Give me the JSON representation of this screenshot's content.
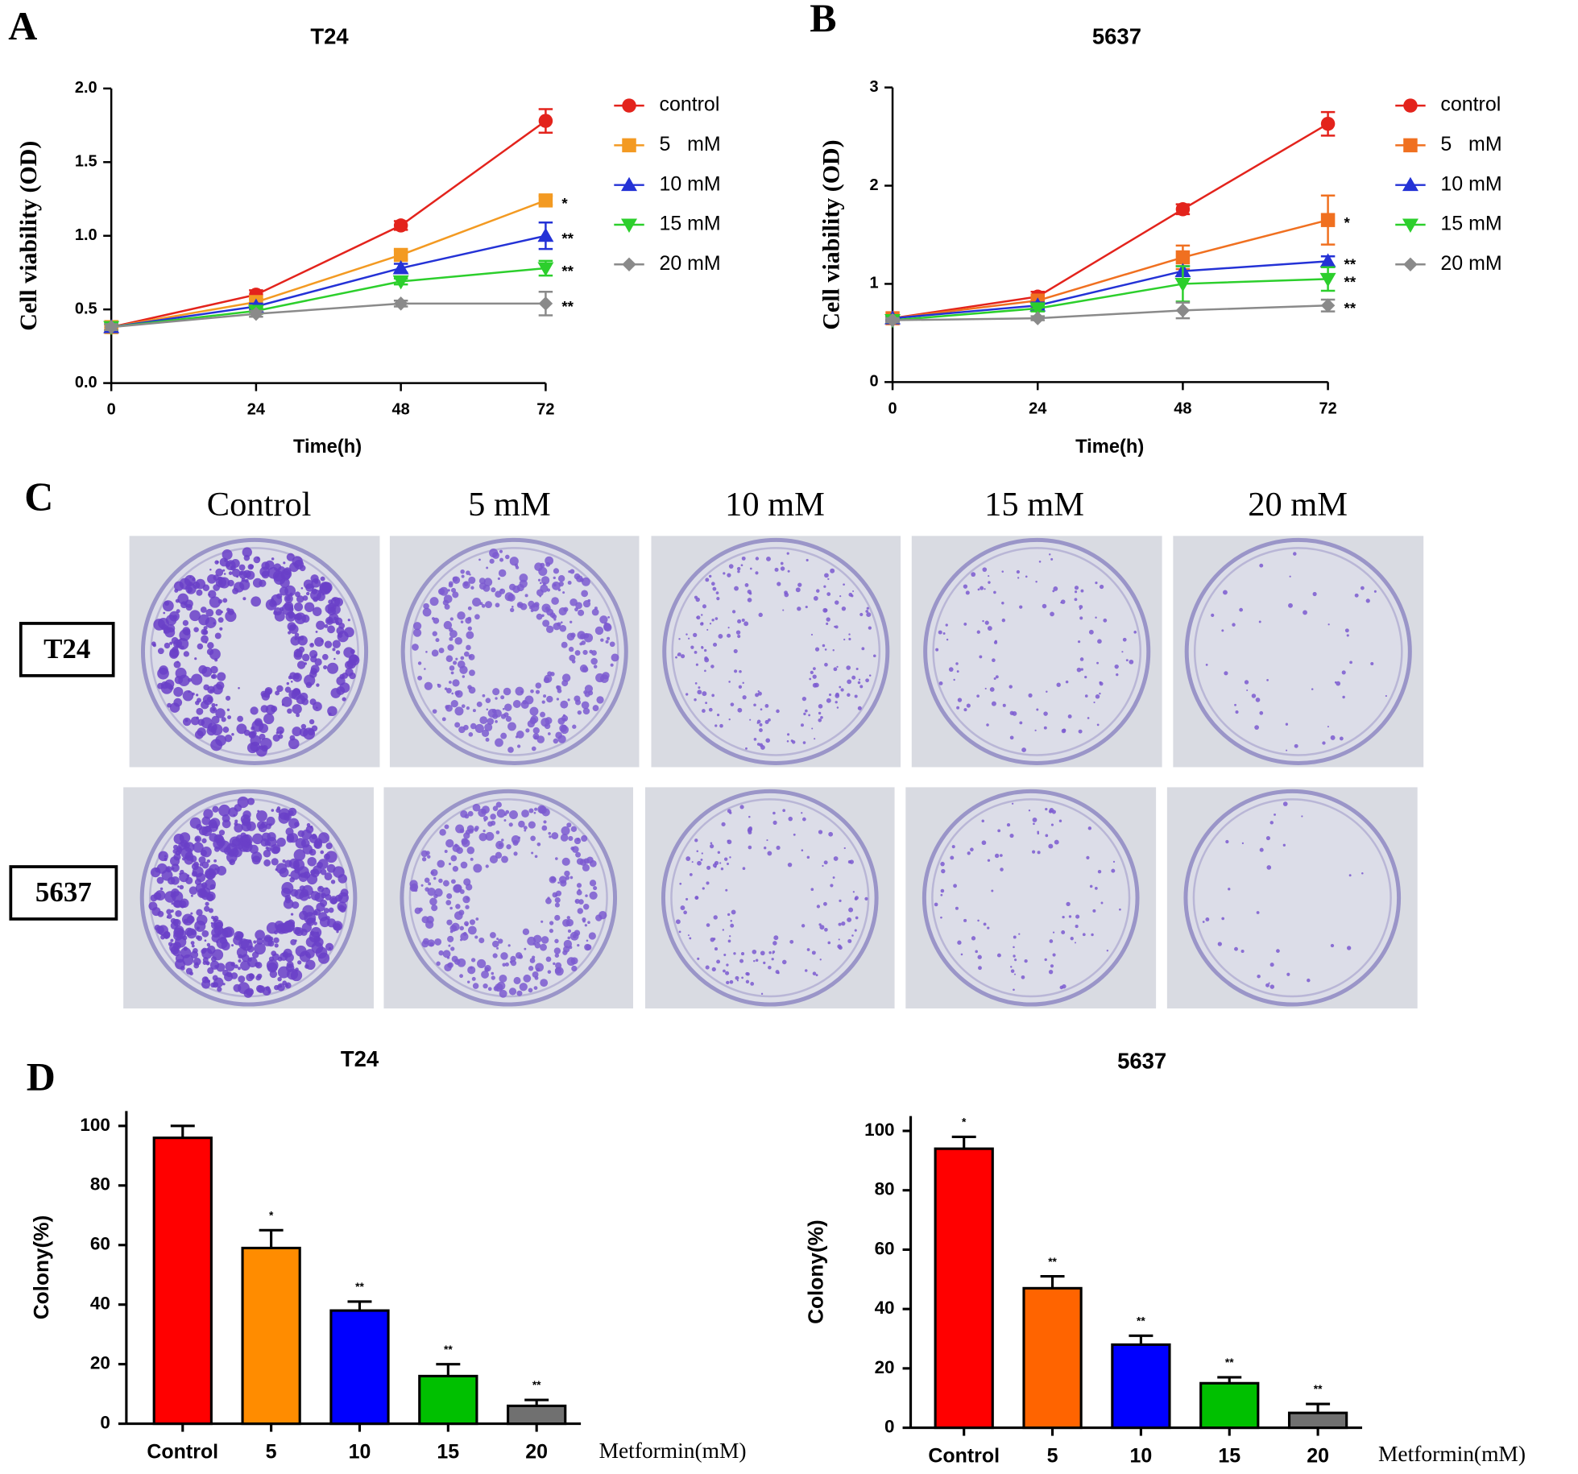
{
  "chart_data": [
    {
      "type": "line",
      "panel_label": "A",
      "title": "T24",
      "xlabel": "Time(h)",
      "ylabel": "Cell viability (OD)",
      "x": [
        0,
        24,
        48,
        72
      ],
      "xlim": [
        0,
        72
      ],
      "xticks": [
        0,
        24,
        48,
        72
      ],
      "ylim": [
        0,
        2
      ],
      "yticks": [
        {
          "value": 0,
          "label": "0.0"
        },
        0.5,
        {
          "value": 1,
          "label": "1.0"
        },
        1.5,
        {
          "value": 2,
          "label": "2.0"
        }
      ],
      "series": [
        {
          "name": "control",
          "color": "#e3231c",
          "marker": "circle",
          "values": [
            0.38,
            0.6,
            1.07,
            1.78
          ],
          "errors": [
            0.02,
            0.03,
            0.03,
            0.08
          ]
        },
        {
          "name": "5   mM",
          "color": "#f39a22",
          "marker": "square",
          "values": [
            0.38,
            0.55,
            0.87,
            1.24
          ],
          "errors": [
            0.02,
            0.02,
            0.03,
            0.03
          ],
          "annotation": "*"
        },
        {
          "name": "10 mM",
          "color": "#2432d6",
          "marker": "triangle-up",
          "values": [
            0.38,
            0.52,
            0.78,
            1.0
          ],
          "errors": [
            0.02,
            0.02,
            0.03,
            0.09
          ],
          "annotation": "**"
        },
        {
          "name": "15 mM",
          "color": "#2ccf2c",
          "marker": "triangle-down",
          "values": [
            0.38,
            0.49,
            0.69,
            0.78
          ],
          "errors": [
            0.02,
            0.02,
            0.02,
            0.05
          ],
          "annotation": "**"
        },
        {
          "name": "20 mM",
          "color": "#8a8a8a",
          "marker": "diamond",
          "values": [
            0.38,
            0.47,
            0.54,
            0.54
          ],
          "errors": [
            0.02,
            0.02,
            0.02,
            0.08
          ],
          "annotation": "**"
        }
      ]
    },
    {
      "type": "line",
      "panel_label": "B",
      "title": "5637",
      "xlabel": "Time(h)",
      "ylabel": "Cell viability (OD)",
      "x": [
        0,
        24,
        48,
        72
      ],
      "xlim": [
        0,
        72
      ],
      "xticks": [
        0,
        24,
        48,
        72
      ],
      "ylim": [
        0,
        3
      ],
      "yticks": [
        0,
        1,
        2,
        3
      ],
      "series": [
        {
          "name": "control",
          "color": "#e3231c",
          "marker": "circle",
          "values": [
            0.65,
            0.87,
            1.76,
            2.63
          ],
          "errors": [
            0.03,
            0.05,
            0.05,
            0.12
          ]
        },
        {
          "name": "5   mM",
          "color": "#f07020",
          "marker": "square",
          "values": [
            0.65,
            0.83,
            1.27,
            1.65
          ],
          "errors": [
            0.02,
            0.04,
            0.12,
            0.25
          ],
          "annotation": "*"
        },
        {
          "name": "10 mM",
          "color": "#2432d6",
          "marker": "triangle-up",
          "values": [
            0.65,
            0.78,
            1.13,
            1.23
          ],
          "errors": [
            0.02,
            0.03,
            0.05,
            0.05
          ],
          "annotation": "**"
        },
        {
          "name": "15 mM",
          "color": "#2ccf2c",
          "marker": "triangle-down",
          "values": [
            0.63,
            0.75,
            1.0,
            1.05
          ],
          "errors": [
            0.02,
            0.03,
            0.18,
            0.12
          ],
          "annotation": "**"
        },
        {
          "name": "20 mM",
          "color": "#8a8a8a",
          "marker": "diamond",
          "values": [
            0.63,
            0.65,
            0.73,
            0.78
          ],
          "errors": [
            0.02,
            0.02,
            0.08,
            0.06
          ],
          "annotation": "**"
        }
      ]
    },
    {
      "type": "bar",
      "panel_label": "D",
      "title": "T24",
      "xlabel": "Metformin(mM)",
      "ylabel": "Colony(%)",
      "categories": [
        "Control",
        "5",
        "10",
        "15",
        "20"
      ],
      "values": [
        96,
        59,
        38,
        16,
        6
      ],
      "errors": [
        4,
        6,
        3,
        4,
        2
      ],
      "annotations": [
        null,
        "*",
        "**",
        "**",
        "**"
      ],
      "colors": [
        "#ff0000",
        "#ff8c00",
        "#0000ff",
        "#00c000",
        "#707070"
      ],
      "ylim": [
        0,
        105
      ],
      "yticks": [
        0,
        20,
        40,
        60,
        80,
        100
      ]
    },
    {
      "type": "bar",
      "title": "5637",
      "xlabel": "Metformin(mM)",
      "ylabel": "Colony(%)",
      "categories": [
        "Control",
        "5",
        "10",
        "15",
        "20"
      ],
      "values": [
        94,
        47,
        28,
        15,
        5
      ],
      "errors": [
        4,
        4,
        3,
        2,
        3
      ],
      "annotations": [
        "*",
        "**",
        "**",
        "**",
        "**"
      ],
      "colors": [
        "#ff0000",
        "#ff6400",
        "#0000ff",
        "#00c000",
        "#707070"
      ],
      "ylim": [
        0,
        105
      ],
      "yticks": [
        0,
        20,
        40,
        60,
        80,
        100
      ]
    }
  ],
  "colony_panel": {
    "panel_label": "C",
    "columns": [
      "Control",
      "5 mM",
      "10 mM",
      "15 mM",
      "20 mM"
    ],
    "rows": [
      "T24",
      "5637"
    ]
  }
}
